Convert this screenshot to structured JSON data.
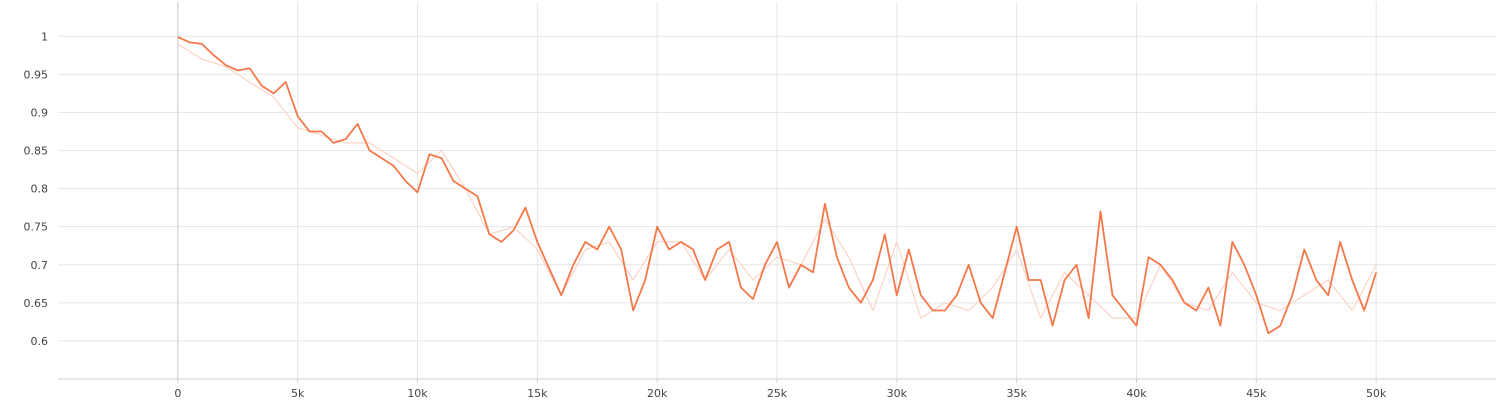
{
  "chart_data": {
    "type": "line",
    "title": "",
    "xlabel": "",
    "ylabel": "",
    "xlim": [
      -5000,
      55000
    ],
    "ylim": [
      0.55,
      1.045
    ],
    "grid": true,
    "x_ticks": [
      0,
      5000,
      10000,
      15000,
      20000,
      25000,
      30000,
      35000,
      40000,
      45000,
      50000
    ],
    "x_tick_labels": [
      "0",
      "5k",
      "10k",
      "15k",
      "20k",
      "25k",
      "30k",
      "35k",
      "40k",
      "45k",
      "50k"
    ],
    "y_ticks": [
      0.6,
      0.65,
      0.7,
      0.75,
      0.8,
      0.85,
      0.9,
      0.95,
      1
    ],
    "y_tick_labels": [
      "0.6",
      "0.65",
      "0.7",
      "0.75",
      "0.8",
      "0.85",
      "0.9",
      "0.95",
      "1"
    ],
    "series": [
      {
        "role": "raw",
        "color": "#fbd4c6",
        "x": [
          0,
          1000,
          2000,
          3000,
          4000,
          5000,
          6000,
          7000,
          8000,
          9000,
          10000,
          11000,
          12000,
          13000,
          14000,
          15000,
          16000,
          17000,
          18000,
          19000,
          20000,
          21000,
          22000,
          23000,
          24000,
          25000,
          26000,
          27000,
          28000,
          29000,
          30000,
          31000,
          32000,
          33000,
          34000,
          35000,
          36000,
          37000,
          38000,
          39000,
          40000,
          41000,
          42000,
          43000,
          44000,
          45000,
          46000,
          47000,
          48000,
          49000,
          50000
        ],
        "y": [
          0.99,
          0.97,
          0.96,
          0.94,
          0.92,
          0.88,
          0.87,
          0.86,
          0.86,
          0.84,
          0.82,
          0.85,
          0.8,
          0.74,
          0.75,
          0.72,
          0.66,
          0.72,
          0.73,
          0.68,
          0.73,
          0.73,
          0.68,
          0.72,
          0.68,
          0.71,
          0.7,
          0.76,
          0.71,
          0.64,
          0.73,
          0.63,
          0.65,
          0.64,
          0.67,
          0.72,
          0.63,
          0.69,
          0.66,
          0.63,
          0.63,
          0.7,
          0.65,
          0.64,
          0.69,
          0.65,
          0.64,
          0.66,
          0.68,
          0.64,
          0.7
        ]
      },
      {
        "role": "smoothed",
        "color": "#f4784a",
        "x": [
          0,
          500,
          1000,
          1500,
          2000,
          2500,
          3000,
          3500,
          4000,
          4500,
          5000,
          5500,
          6000,
          6500,
          7000,
          7500,
          8000,
          8500,
          9000,
          9500,
          10000,
          10500,
          11000,
          11500,
          12000,
          12500,
          13000,
          13500,
          14000,
          14500,
          15000,
          15500,
          16000,
          16500,
          17000,
          17500,
          18000,
          18500,
          19000,
          19500,
          20000,
          20500,
          21000,
          21500,
          22000,
          22500,
          23000,
          23500,
          24000,
          24500,
          25000,
          25500,
          26000,
          26500,
          27000,
          27500,
          28000,
          28500,
          29000,
          29500,
          30000,
          30500,
          31000,
          31500,
          32000,
          32500,
          33000,
          33500,
          34000,
          34500,
          35000,
          35500,
          36000,
          36500,
          37000,
          37500,
          38000,
          38500,
          39000,
          39500,
          40000,
          40500,
          41000,
          41500,
          42000,
          42500,
          43000,
          43500,
          44000,
          44500,
          45000,
          45500,
          46000,
          46500,
          47000,
          47500,
          48000,
          48500,
          49000,
          49500,
          50000
        ],
        "y": [
          0.999,
          0.992,
          0.99,
          0.975,
          0.962,
          0.955,
          0.958,
          0.935,
          0.925,
          0.94,
          0.895,
          0.875,
          0.875,
          0.86,
          0.865,
          0.885,
          0.85,
          0.84,
          0.83,
          0.81,
          0.795,
          0.845,
          0.84,
          0.81,
          0.8,
          0.79,
          0.74,
          0.73,
          0.745,
          0.775,
          0.73,
          0.695,
          0.66,
          0.7,
          0.73,
          0.72,
          0.75,
          0.72,
          0.64,
          0.68,
          0.75,
          0.72,
          0.73,
          0.72,
          0.68,
          0.72,
          0.73,
          0.67,
          0.655,
          0.7,
          0.73,
          0.67,
          0.7,
          0.69,
          0.78,
          0.71,
          0.67,
          0.65,
          0.68,
          0.74,
          0.66,
          0.72,
          0.66,
          0.64,
          0.64,
          0.66,
          0.7,
          0.65,
          0.63,
          0.69,
          0.75,
          0.68,
          0.68,
          0.62,
          0.68,
          0.7,
          0.63,
          0.77,
          0.66,
          0.64,
          0.62,
          0.71,
          0.7,
          0.68,
          0.65,
          0.64,
          0.67,
          0.62,
          0.73,
          0.7,
          0.66,
          0.61,
          0.62,
          0.66,
          0.72,
          0.68,
          0.66,
          0.73,
          0.68,
          0.64,
          0.69
        ]
      }
    ]
  }
}
